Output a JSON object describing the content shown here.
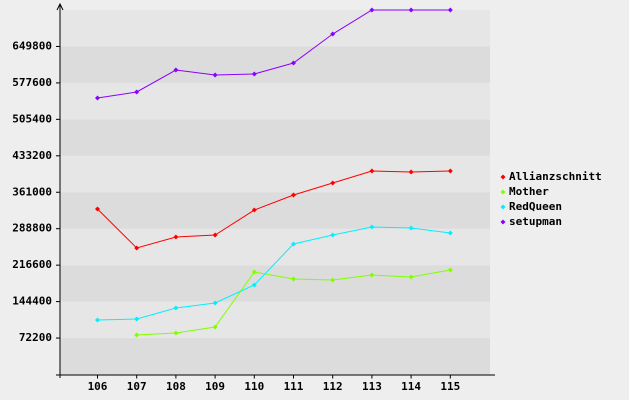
{
  "chart_data": {
    "type": "line",
    "categories": [
      "106",
      "107",
      "108",
      "109",
      "110",
      "111",
      "112",
      "113",
      "114",
      "115"
    ],
    "series": [
      {
        "name": "Allianzschnitt",
        "color": "#ff0000",
        "values": [
          327800,
          250600,
          272300,
          276300,
          325800,
          355500,
          379300,
          403100,
          401100,
          403100
        ]
      },
      {
        "name": "Mother",
        "color": "#80ff00",
        "values": [
          null,
          78200,
          82200,
          94100,
          203000,
          189200,
          187200,
          197100,
          193100,
          207000
        ]
      },
      {
        "name": "RedQueen",
        "color": "#00f0ff",
        "values": [
          108000,
          110000,
          131700,
          141600,
          177300,
          258500,
          276300,
          292200,
          290200,
          280300
        ]
      },
      {
        "name": "setupman",
        "color": "#8a00ff",
        "values": [
          547700,
          559600,
          603100,
          593200,
          595200,
          617000,
          674400,
          722000,
          722000,
          722000
        ]
      }
    ],
    "ylim": [
      0,
      722000
    ],
    "yticks": [
      72200,
      144400,
      216600,
      288800,
      361000,
      433200,
      505400,
      577600,
      649800
    ],
    "legend": "right"
  }
}
